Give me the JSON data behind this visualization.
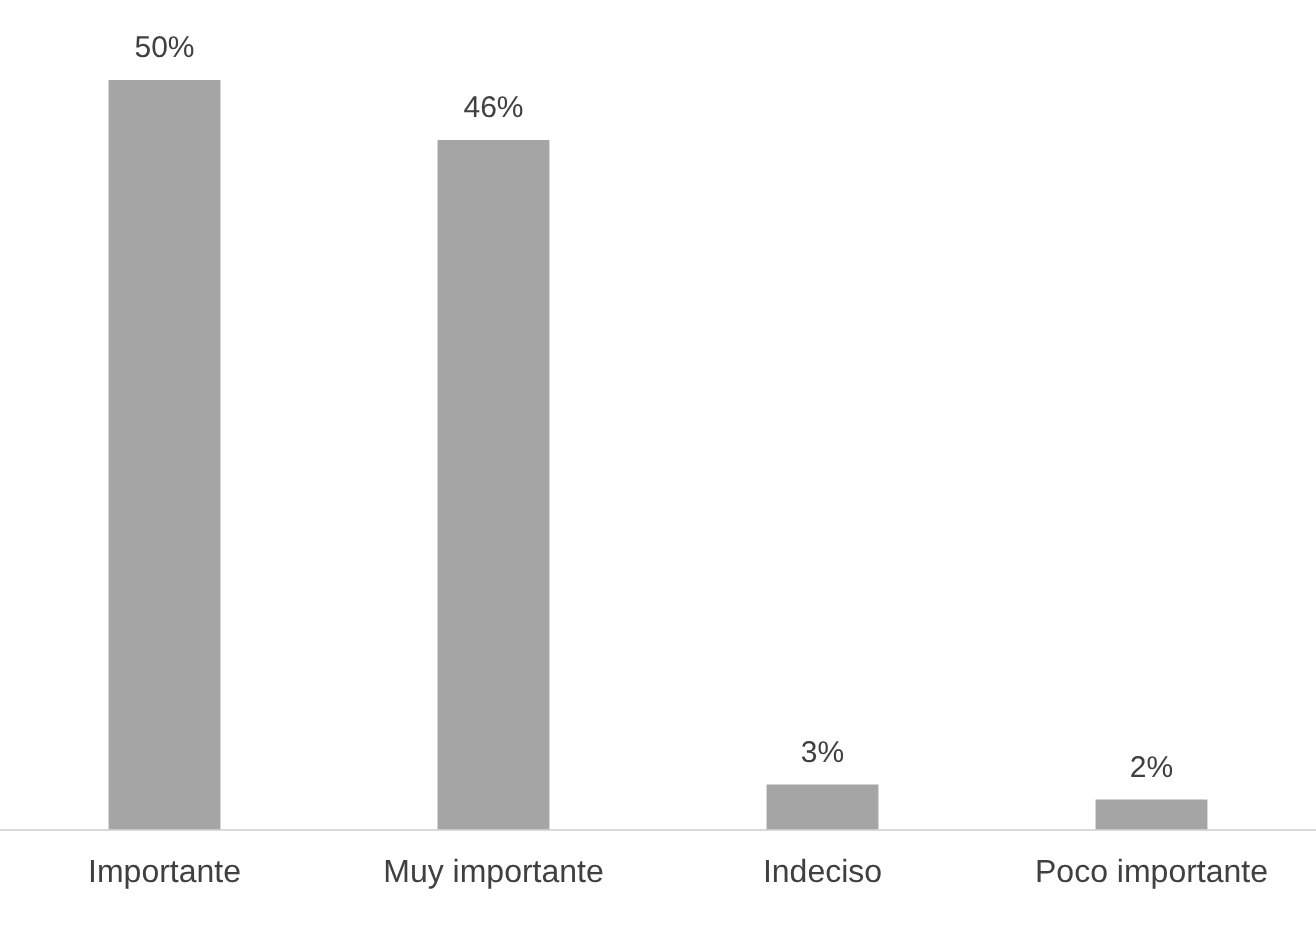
{
  "chart_data": {
    "type": "bar",
    "categories": [
      "Importante",
      "Muy importante",
      "Indeciso",
      "Poco importante"
    ],
    "values": [
      50,
      46,
      3,
      2
    ],
    "value_labels": [
      "50%",
      "46%",
      "3%",
      "2%"
    ],
    "color": "#a5a5a5",
    "grid": false,
    "legend": false
  }
}
